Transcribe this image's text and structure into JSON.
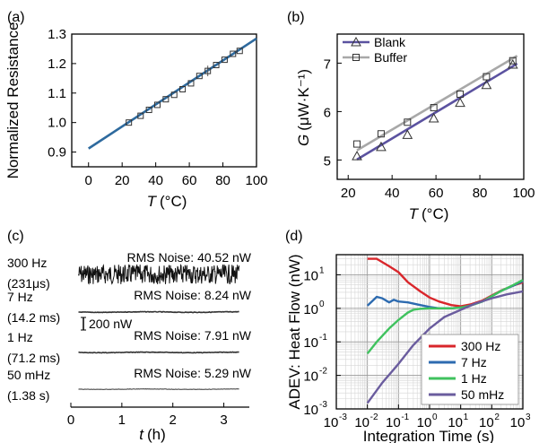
{
  "chart_data": [
    {
      "panel": "(a)",
      "type": "line",
      "xlabel_italic": "T",
      "xlabel_unit": "(°C)",
      "ylabel": "Normalized Resistance",
      "xlim": [
        -10,
        100
      ],
      "ylim": [
        0.85,
        1.3
      ],
      "x_ticks": [
        "0",
        "20",
        "40",
        "60",
        "80",
        "100"
      ],
      "y_ticks": [
        "0.9",
        "1.0",
        "1.1",
        "1.2",
        "1.3"
      ],
      "fit_line": {
        "x": [
          0,
          100
        ],
        "y": [
          0.912,
          1.285
        ]
      },
      "points": {
        "x": [
          24,
          31,
          36,
          41,
          46,
          51,
          56,
          61,
          66,
          71,
          76,
          81,
          86,
          90
        ],
        "y": [
          1.0,
          1.023,
          1.043,
          1.06,
          1.079,
          1.094,
          1.113,
          1.133,
          1.158,
          1.175,
          1.195,
          1.213,
          1.233,
          1.243
        ],
        "err": [
          0,
          0,
          0,
          0,
          0,
          0,
          0,
          0,
          0,
          0.018,
          0,
          0,
          0,
          0
        ]
      },
      "colors": {
        "line": "#2e6a9e",
        "marker": "#333333"
      }
    },
    {
      "panel": "(b)",
      "type": "scatter",
      "xlabel_italic": "T",
      "xlabel_unit": "(°C)",
      "ylabel_italic": "G",
      "ylabel_unit": "(μW·K⁻¹)",
      "xlim": [
        15,
        100
      ],
      "ylim": [
        4.6,
        7.6
      ],
      "x_ticks": [
        "20",
        "40",
        "60",
        "80",
        "100"
      ],
      "y_ticks": [
        "5",
        "6",
        "7"
      ],
      "legend": [
        "Blank",
        "Buffer"
      ],
      "series": [
        {
          "name": "Blank",
          "marker": "triangle",
          "color": "#5b52a0",
          "x": [
            24,
            35,
            47,
            59,
            71,
            83,
            95
          ],
          "y": [
            5.08,
            5.27,
            5.52,
            5.86,
            6.18,
            6.55,
            6.97
          ],
          "fit": {
            "x": [
              24,
              97
            ],
            "y": [
              5.01,
              6.99
            ]
          }
        },
        {
          "name": "Buffer",
          "marker": "square",
          "color": "#a8a8a8",
          "x": [
            24,
            35,
            47,
            59,
            71,
            83,
            95
          ],
          "y": [
            5.33,
            5.54,
            5.78,
            6.08,
            6.36,
            6.72,
            7.05
          ],
          "fit": {
            "x": [
              24,
              97
            ],
            "y": [
              5.2,
              7.15
            ]
          }
        }
      ]
    },
    {
      "panel": "(c)",
      "type": "line",
      "xlabel_italic": "t",
      "xlabel_unit": "(h)",
      "xlim": [
        0,
        3.5
      ],
      "x_ticks": [
        "0",
        "1",
        "2",
        "3"
      ],
      "traces": [
        {
          "freq": "300 Hz",
          "period": "(231μs)",
          "noise": "RMS Noise: 40.52 nW",
          "amplitude": 1.0
        },
        {
          "freq": "7 Hz",
          "period": "(14.2 ms)",
          "noise": "RMS Noise: 8.24 nW",
          "amplitude": 0.2
        },
        {
          "freq": "1 Hz",
          "period": "(71.2 ms)",
          "noise": "RMS Noise: 7.91 nW",
          "amplitude": 0.19
        },
        {
          "freq": "50 mHz",
          "period": "(1.38 s)",
          "noise": "RMS Noise: 5.29 nW",
          "amplitude": 0.13
        }
      ],
      "scale_bar": "200 nW"
    },
    {
      "panel": "(d)",
      "type": "line",
      "xscale": "log",
      "yscale": "log",
      "xlabel": "Integration Time (s)",
      "ylabel": "ADEV: Heat Flow (nW)",
      "xlim_exp": [
        -3,
        3
      ],
      "ylim_exp": [
        -3,
        1.6
      ],
      "x_ticks": [
        "10",
        "10",
        "10",
        "10",
        "10",
        "10",
        "10"
      ],
      "x_tick_exps": [
        "-3",
        "-2",
        "-1",
        "0",
        "1",
        "2",
        "3"
      ],
      "y_ticks": [
        "10",
        "10",
        "10",
        "10",
        "10"
      ],
      "y_tick_exps": [
        "-3",
        "-2",
        "-1",
        "0",
        "1"
      ],
      "grid": true,
      "legend": [
        "300 Hz",
        "7 Hz",
        "1 Hz",
        "50 mHz"
      ],
      "series": [
        {
          "name": "300 Hz",
          "color": "#d9262b",
          "x": [
            0.01,
            0.02,
            0.05,
            0.1,
            0.2,
            0.5,
            1,
            2,
            5,
            10,
            20,
            50,
            100,
            200,
            500,
            1000
          ],
          "y": [
            30,
            30,
            18,
            12,
            6,
            3.2,
            2.1,
            1.6,
            1.25,
            1.15,
            1.3,
            1.7,
            2.4,
            3.4,
            4.8,
            6
          ]
        },
        {
          "name": "7 Hz",
          "color": "#2d6bb0",
          "x": [
            0.01,
            0.02,
            0.03,
            0.05,
            0.07,
            0.1,
            0.2,
            0.5,
            1,
            2,
            5,
            10,
            20,
            50,
            100,
            200,
            500,
            1000
          ],
          "y": [
            1.2,
            2.2,
            2.0,
            1.5,
            1.8,
            1.6,
            1.5,
            1.25,
            1.1,
            1.0,
            1.0,
            1.05,
            1.2,
            1.6,
            2.3,
            3.3,
            4.8,
            6.5
          ]
        },
        {
          "name": "1 Hz",
          "color": "#3fc25e",
          "x": [
            0.01,
            0.02,
            0.05,
            0.1,
            0.2,
            0.3,
            0.5,
            1,
            2,
            5,
            10,
            20,
            50,
            100,
            200,
            500,
            1000
          ],
          "y": [
            0.045,
            0.1,
            0.25,
            0.45,
            0.75,
            0.9,
            0.97,
            1.0,
            1.0,
            1.0,
            1.05,
            1.2,
            1.6,
            2.3,
            3.3,
            5,
            7
          ]
        },
        {
          "name": "50 mHz",
          "color": "#6a5c9e",
          "x": [
            0.01,
            0.03,
            0.1,
            0.3,
            1,
            3,
            10,
            30,
            100,
            300,
            1000
          ],
          "y": [
            0.0015,
            0.006,
            0.022,
            0.08,
            0.25,
            0.55,
            0.9,
            1.4,
            2.0,
            2.6,
            3.2
          ]
        }
      ]
    }
  ]
}
